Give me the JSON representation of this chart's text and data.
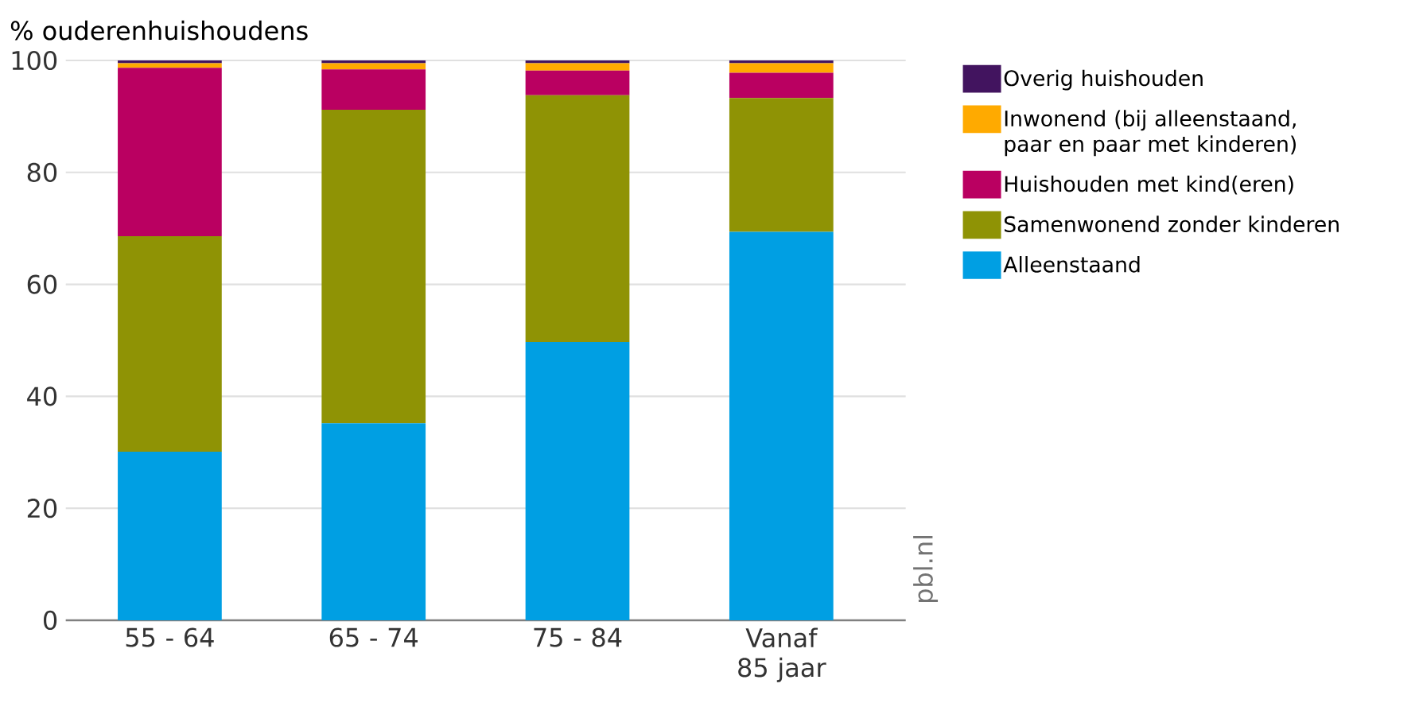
{
  "chart_data": {
    "type": "bar",
    "stacked": true,
    "ylabel": "% ouderenhuishoudens",
    "categories": [
      "55 - 64",
      "65 - 74",
      "75 - 84",
      "Vanaf 85 jaar"
    ],
    "series": [
      {
        "name": "Alleenstaand",
        "color": "#009fe3",
        "values": [
          30.1,
          35.2,
          49.7,
          69.4
        ]
      },
      {
        "name": "Samenwonend zonder kinderen",
        "color": "#8f9305",
        "values": [
          38.5,
          56.0,
          44.1,
          23.9
        ]
      },
      {
        "name": "Huishouden met kind(eren)",
        "color": "#ba0061",
        "values": [
          30.1,
          7.2,
          4.4,
          4.5
        ]
      },
      {
        "name": "Inwonend (bij alleenstaand, paar en paar met kinderen)",
        "color": "#ffaa00",
        "values": [
          0.8,
          1.1,
          1.3,
          1.7
        ]
      },
      {
        "name": "Overig huishouden",
        "color": "#42145f",
        "values": [
          0.5,
          0.5,
          0.5,
          0.5
        ]
      }
    ],
    "ylim": [
      0,
      100
    ],
    "yticks": [
      0,
      20,
      40,
      60,
      80,
      100
    ],
    "grid": "y",
    "legend": "right",
    "annotations": [
      "pbl.nl"
    ]
  }
}
